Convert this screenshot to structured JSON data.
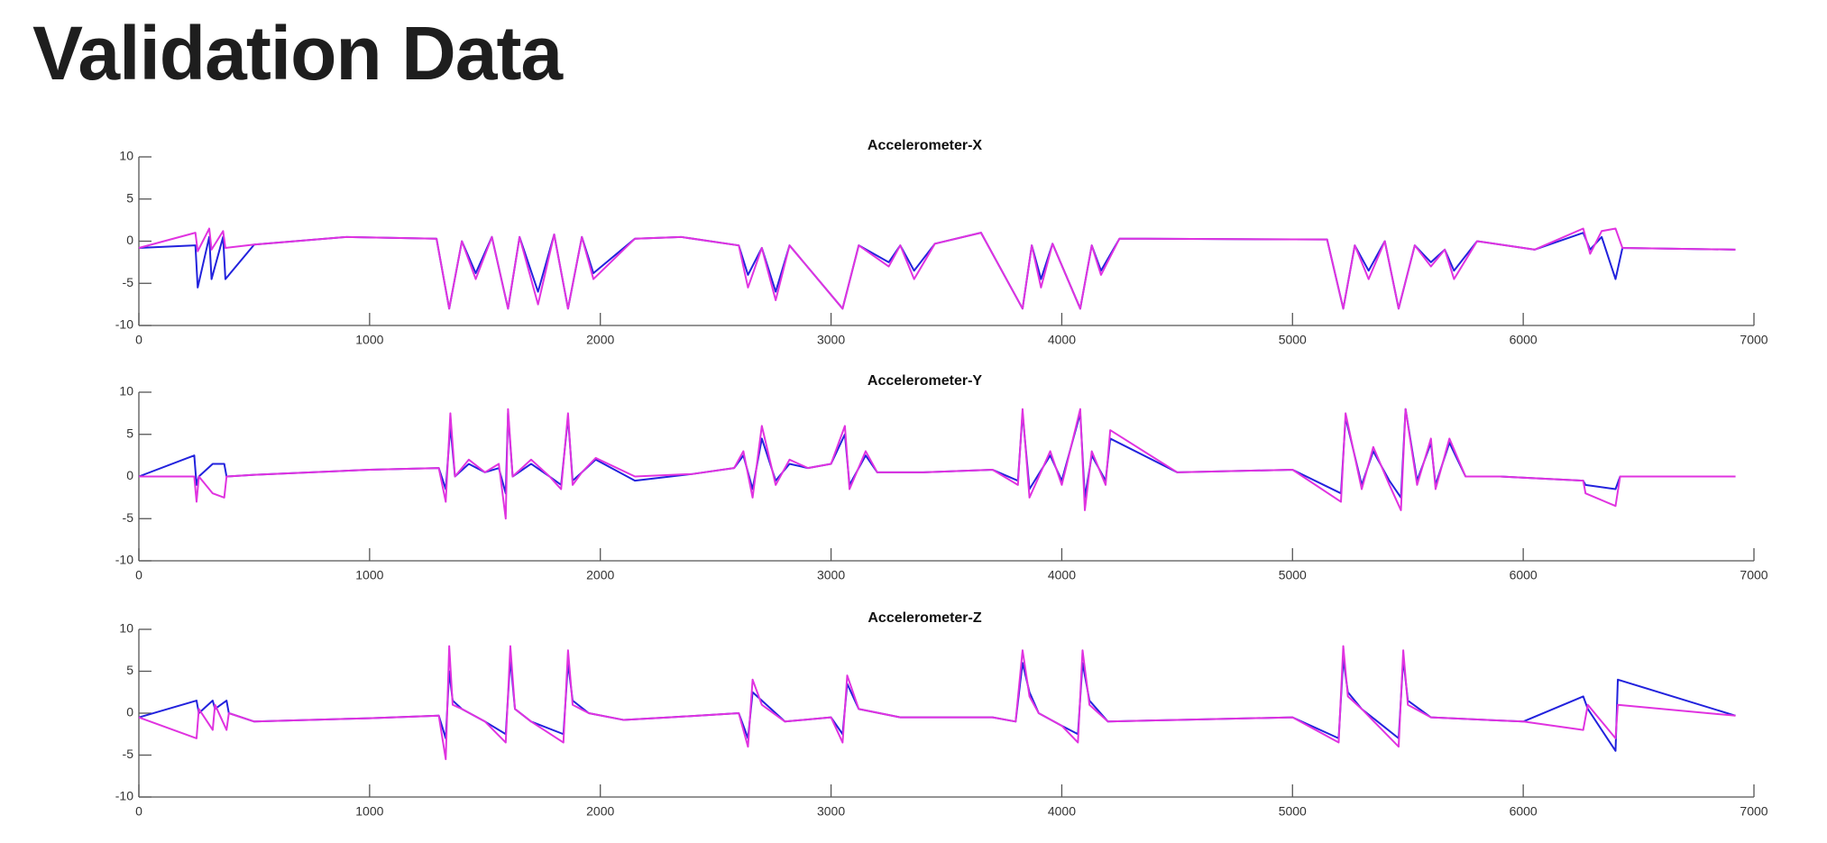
{
  "title": "Validation Data",
  "chart_data": [
    {
      "type": "line",
      "title": "Accelerometer-X",
      "x": [
        0,
        245,
        255,
        305,
        315,
        365,
        375,
        500,
        900,
        1290,
        1345,
        1400,
        1460,
        1530,
        1600,
        1650,
        1730,
        1800,
        1860,
        1920,
        1970,
        2150,
        2350,
        2600,
        2640,
        2700,
        2760,
        2820,
        3050,
        3120,
        3250,
        3300,
        3360,
        3450,
        3650,
        3830,
        3870,
        3910,
        3960,
        4080,
        4130,
        4170,
        4250,
        5150,
        5220,
        5270,
        5330,
        5400,
        5460,
        5530,
        5600,
        5660,
        5700,
        5800,
        6050,
        6260,
        6290,
        6340,
        6400,
        6430,
        6920
      ],
      "series": [
        {
          "color": "#2222dd",
          "values": [
            -0.8,
            -0.5,
            -5.5,
            0.5,
            -4.5,
            0.5,
            -4.5,
            -0.4,
            0.5,
            0.3,
            -8,
            0,
            -3.8,
            0.5,
            -8,
            0.5,
            -6,
            0.8,
            -8,
            0.5,
            -3.8,
            0.3,
            0.5,
            -0.5,
            -4,
            -0.8,
            -6,
            -0.5,
            -8,
            -0.5,
            -2.5,
            -0.5,
            -3.5,
            -0.3,
            1,
            -8,
            -0.5,
            -4.5,
            -0.3,
            -8,
            -0.5,
            -3.5,
            0.3,
            0.2,
            -8,
            -0.5,
            -3.5,
            0,
            -8,
            -0.5,
            -2.5,
            -1,
            -3.5,
            0,
            -1,
            1,
            -1,
            0.5,
            -4.5,
            -0.8,
            -1
          ]
        },
        {
          "color": "#e033e0",
          "values": [
            -0.8,
            1,
            -1.2,
            1.5,
            -1,
            1.2,
            -0.8,
            -0.4,
            0.5,
            0.3,
            -8,
            0,
            -4.5,
            0.5,
            -8,
            0.5,
            -7.5,
            0.8,
            -8,
            0.5,
            -4.5,
            0.3,
            0.5,
            -0.5,
            -5.5,
            -0.8,
            -7,
            -0.5,
            -8,
            -0.5,
            -3,
            -0.5,
            -4.5,
            -0.3,
            1,
            -8,
            -0.5,
            -5.5,
            -0.3,
            -8,
            -0.5,
            -4,
            0.3,
            0.2,
            -8,
            -0.5,
            -4.5,
            0,
            -8,
            -0.5,
            -3,
            -1,
            -4.5,
            0,
            -1,
            1.5,
            -1.5,
            1.2,
            1.5,
            -0.8,
            -1
          ]
        }
      ],
      "xlim": [
        0,
        7000
      ],
      "xticks": [
        0,
        1000,
        2000,
        3000,
        4000,
        5000,
        6000,
        7000
      ],
      "ylim": [
        -10,
        10
      ],
      "yticks": [
        -10,
        -5,
        0,
        5,
        10
      ]
    },
    {
      "type": "line",
      "title": "Accelerometer-Y",
      "x": [
        0,
        240,
        250,
        260,
        320,
        370,
        380,
        500,
        1000,
        1300,
        1330,
        1350,
        1370,
        1430,
        1500,
        1560,
        1590,
        1600,
        1620,
        1700,
        1780,
        1830,
        1860,
        1880,
        1920,
        1980,
        2150,
        2400,
        2580,
        2620,
        2660,
        2700,
        2760,
        2820,
        2900,
        3000,
        3060,
        3080,
        3150,
        3200,
        3400,
        3700,
        3810,
        3830,
        3860,
        3950,
        4000,
        4080,
        4100,
        4130,
        4190,
        4210,
        4500,
        5000,
        5210,
        5230,
        5300,
        5350,
        5420,
        5470,
        5490,
        5540,
        5600,
        5620,
        5680,
        5750,
        5900,
        6260,
        6270,
        6400,
        6420,
        6920
      ],
      "series": [
        {
          "color": "#2222dd",
          "values": [
            0,
            2.5,
            -1,
            0,
            1.5,
            1.5,
            0,
            0.2,
            0.8,
            1,
            -1.5,
            6,
            0,
            1.5,
            0.5,
            1,
            -2,
            7.5,
            0,
            1.5,
            0,
            -1,
            7,
            -0.5,
            0.5,
            2,
            -0.5,
            0.3,
            1,
            2.5,
            -1.5,
            4.5,
            -0.5,
            1.5,
            1,
            1.5,
            5,
            -1,
            2.5,
            0.5,
            0.5,
            0.8,
            -0.5,
            7.5,
            -1.5,
            2.5,
            -0.5,
            7.5,
            -2.5,
            2.5,
            -0.5,
            4.5,
            0.5,
            0.8,
            -2,
            7,
            -1,
            3,
            -0.5,
            -2.5,
            8,
            -0.5,
            4,
            -1,
            4,
            0,
            0,
            -0.5,
            -1,
            -1.5,
            0,
            0
          ]
        },
        {
          "color": "#e033e0",
          "values": [
            0,
            0,
            -3,
            0,
            -2,
            -2.5,
            0,
            0.2,
            0.8,
            1,
            -3,
            7.5,
            0,
            2,
            0.5,
            1.5,
            -5,
            8,
            0,
            2,
            0,
            -1.5,
            7.5,
            -1,
            0.5,
            2.2,
            0,
            0.3,
            1,
            3,
            -2.5,
            6,
            -1,
            2,
            1,
            1.5,
            6,
            -1.5,
            3,
            0.5,
            0.5,
            0.8,
            -1,
            8,
            -2.5,
            3,
            -1,
            8,
            -4,
            3,
            -1,
            5.5,
            0.5,
            0.8,
            -3,
            7.5,
            -1.5,
            3.5,
            -1,
            -4,
            8,
            -1,
            4.5,
            -1.5,
            4.5,
            0,
            0,
            -0.5,
            -2,
            -3.5,
            0,
            0
          ]
        }
      ],
      "xlim": [
        0,
        7000
      ],
      "xticks": [
        0,
        1000,
        2000,
        3000,
        4000,
        5000,
        6000,
        7000
      ],
      "ylim": [
        -10,
        10
      ],
      "yticks": [
        -10,
        -5,
        0,
        5,
        10
      ]
    },
    {
      "type": "line",
      "title": "Accelerometer-Z",
      "x": [
        0,
        250,
        260,
        320,
        330,
        380,
        390,
        500,
        1000,
        1300,
        1330,
        1345,
        1360,
        1400,
        1500,
        1590,
        1610,
        1630,
        1700,
        1840,
        1860,
        1880,
        1950,
        2100,
        2300,
        2600,
        2640,
        2660,
        2700,
        2800,
        3000,
        3050,
        3070,
        3120,
        3300,
        3700,
        3800,
        3830,
        3860,
        3900,
        4000,
        4070,
        4090,
        4120,
        4200,
        4500,
        5000,
        5200,
        5220,
        5240,
        5300,
        5460,
        5480,
        5500,
        5600,
        6000,
        6260,
        6280,
        6400,
        6410,
        6920
      ],
      "series": [
        {
          "color": "#2222dd",
          "values": [
            -0.5,
            1.5,
            0,
            1.5,
            0.5,
            1.5,
            0,
            -1,
            -0.6,
            -0.3,
            -3,
            5,
            1.5,
            0.5,
            -1,
            -2.5,
            6.5,
            0.5,
            -1,
            -2.5,
            6,
            1.5,
            0,
            -0.8,
            -0.5,
            0,
            -3,
            2.5,
            1.5,
            -1,
            -0.5,
            -2.5,
            3.5,
            0.5,
            -0.5,
            -0.5,
            -1,
            6,
            2.5,
            0,
            -1.5,
            -2.5,
            6,
            1.5,
            -1,
            -0.8,
            -0.5,
            -3,
            6.5,
            2.5,
            0.5,
            -3,
            6.5,
            1.5,
            -0.5,
            -1,
            2,
            0.5,
            -4.5,
            4,
            -0.3
          ]
        },
        {
          "color": "#e033e0",
          "values": [
            -0.5,
            -3,
            0.5,
            -2,
            1,
            -2,
            0,
            -1,
            -0.6,
            -0.3,
            -5.5,
            8,
            1,
            0.5,
            -1,
            -3.5,
            8,
            0.5,
            -1,
            -3.5,
            7.5,
            1,
            0,
            -0.8,
            -0.5,
            0,
            -4,
            4,
            1,
            -1,
            -0.5,
            -3.5,
            4.5,
            0.5,
            -0.5,
            -0.5,
            -1,
            7.5,
            2,
            0,
            -1.5,
            -3.5,
            7.5,
            1,
            -1,
            -0.8,
            -0.5,
            -3.5,
            8,
            2,
            0.5,
            -4,
            7.5,
            1,
            -0.5,
            -1,
            -2,
            1,
            -3,
            1,
            -0.3
          ]
        }
      ],
      "xlim": [
        0,
        7000
      ],
      "xticks": [
        0,
        1000,
        2000,
        3000,
        4000,
        5000,
        6000,
        7000
      ],
      "ylim": [
        -10,
        10
      ],
      "yticks": [
        -10,
        -5,
        0,
        5,
        10
      ]
    }
  ]
}
